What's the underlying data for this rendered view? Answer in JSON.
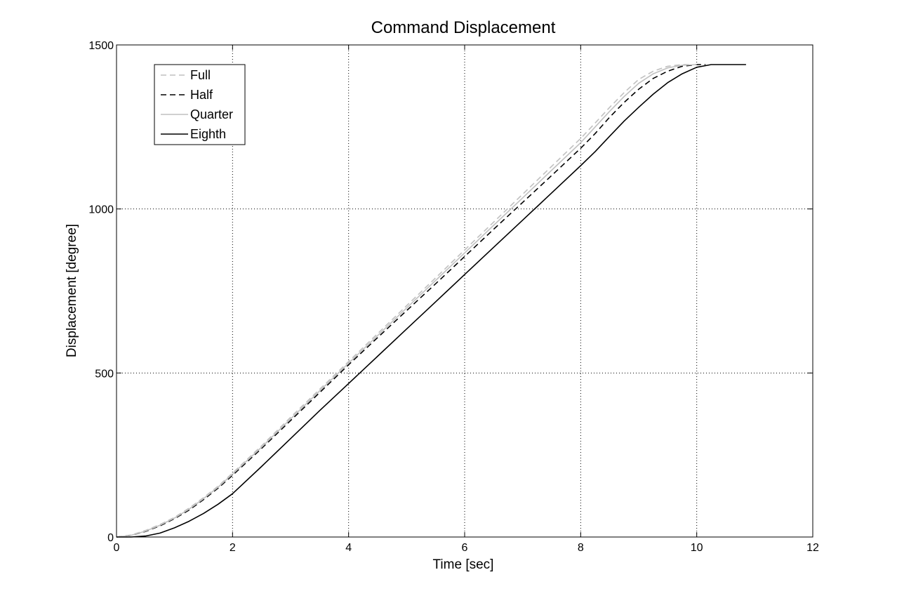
{
  "chart_data": {
    "type": "line",
    "title": "Command Displacement",
    "xlabel": "Time [sec]",
    "ylabel": "Displacement [degree]",
    "xlim": [
      0,
      12
    ],
    "ylim": [
      0,
      1500
    ],
    "xticks": [
      0,
      2,
      4,
      6,
      8,
      10,
      12
    ],
    "yticks": [
      0,
      500,
      1000,
      1500
    ],
    "xtick_labels": [
      "0",
      "2",
      "4",
      "6",
      "8",
      "10",
      "12"
    ],
    "ytick_labels": [
      "0",
      "500",
      "1000",
      "1500"
    ],
    "grid": true,
    "legend_position": "top-left",
    "series": [
      {
        "name": "Full",
        "color": "#c0c0c0",
        "dash": "dashed",
        "x": [
          0,
          0.25,
          0.5,
          0.75,
          1.0,
          1.25,
          1.5,
          1.75,
          2.0,
          2.5,
          3.0,
          3.5,
          4.0,
          4.5,
          5.0,
          5.5,
          6.0,
          6.5,
          7.0,
          7.5,
          8.0,
          8.25,
          8.5,
          8.75,
          9.0,
          9.25,
          9.5,
          9.75,
          9.9
        ],
        "y": [
          0,
          6,
          20,
          38,
          60,
          88,
          120,
          155,
          195,
          278,
          365,
          450,
          535,
          620,
          705,
          790,
          875,
          960,
          1045,
          1130,
          1215,
          1262,
          1310,
          1355,
          1395,
          1420,
          1435,
          1440,
          1440
        ]
      },
      {
        "name": "Half",
        "color": "#000000",
        "dash": "dashed",
        "x": [
          0,
          0.25,
          0.5,
          0.75,
          1.0,
          1.25,
          1.5,
          1.75,
          2.0,
          2.5,
          3.0,
          3.5,
          4.0,
          4.5,
          5.0,
          5.5,
          6.0,
          6.5,
          7.0,
          7.5,
          8.0,
          8.25,
          8.5,
          8.75,
          9.0,
          9.25,
          9.5,
          9.75,
          10.0,
          10.15
        ],
        "y": [
          0,
          5,
          17,
          34,
          56,
          82,
          114,
          149,
          188,
          270,
          355,
          440,
          525,
          608,
          690,
          772,
          855,
          938,
          1020,
          1102,
          1185,
          1230,
          1280,
          1325,
          1365,
          1398,
          1420,
          1435,
          1440,
          1440
        ]
      },
      {
        "name": "Quarter",
        "color": "#c0c0c0",
        "dash": "solid",
        "x": [
          0,
          0.25,
          0.5,
          0.75,
          1.0,
          1.25,
          1.5,
          1.75,
          2.0,
          2.5,
          3.0,
          3.5,
          4.0,
          4.5,
          5.0,
          5.5,
          6.0,
          6.5,
          7.0,
          7.5,
          8.0,
          8.25,
          8.5,
          8.75,
          9.0,
          9.25,
          9.5,
          9.75,
          10.0
        ],
        "y": [
          0,
          5,
          18,
          36,
          58,
          85,
          117,
          152,
          192,
          274,
          360,
          445,
          530,
          614,
          698,
          782,
          866,
          950,
          1034,
          1118,
          1202,
          1250,
          1298,
          1343,
          1383,
          1412,
          1430,
          1438,
          1440
        ]
      },
      {
        "name": "Eighth",
        "color": "#000000",
        "dash": "solid",
        "x": [
          0,
          0.25,
          0.5,
          0.75,
          1.0,
          1.25,
          1.5,
          1.75,
          2.0,
          2.5,
          3.0,
          3.5,
          4.0,
          4.5,
          5.0,
          5.5,
          6.0,
          6.5,
          7.0,
          7.5,
          8.0,
          8.25,
          8.5,
          8.75,
          9.0,
          9.25,
          9.5,
          9.75,
          10.0,
          10.25,
          10.5,
          10.85
        ],
        "y": [
          0,
          0,
          3,
          12,
          28,
          48,
          72,
          100,
          132,
          215,
          300,
          385,
          468,
          551,
          634,
          717,
          800,
          883,
          966,
          1049,
          1132,
          1175,
          1222,
          1268,
          1310,
          1350,
          1385,
          1412,
          1432,
          1440,
          1440,
          1440
        ]
      }
    ]
  }
}
